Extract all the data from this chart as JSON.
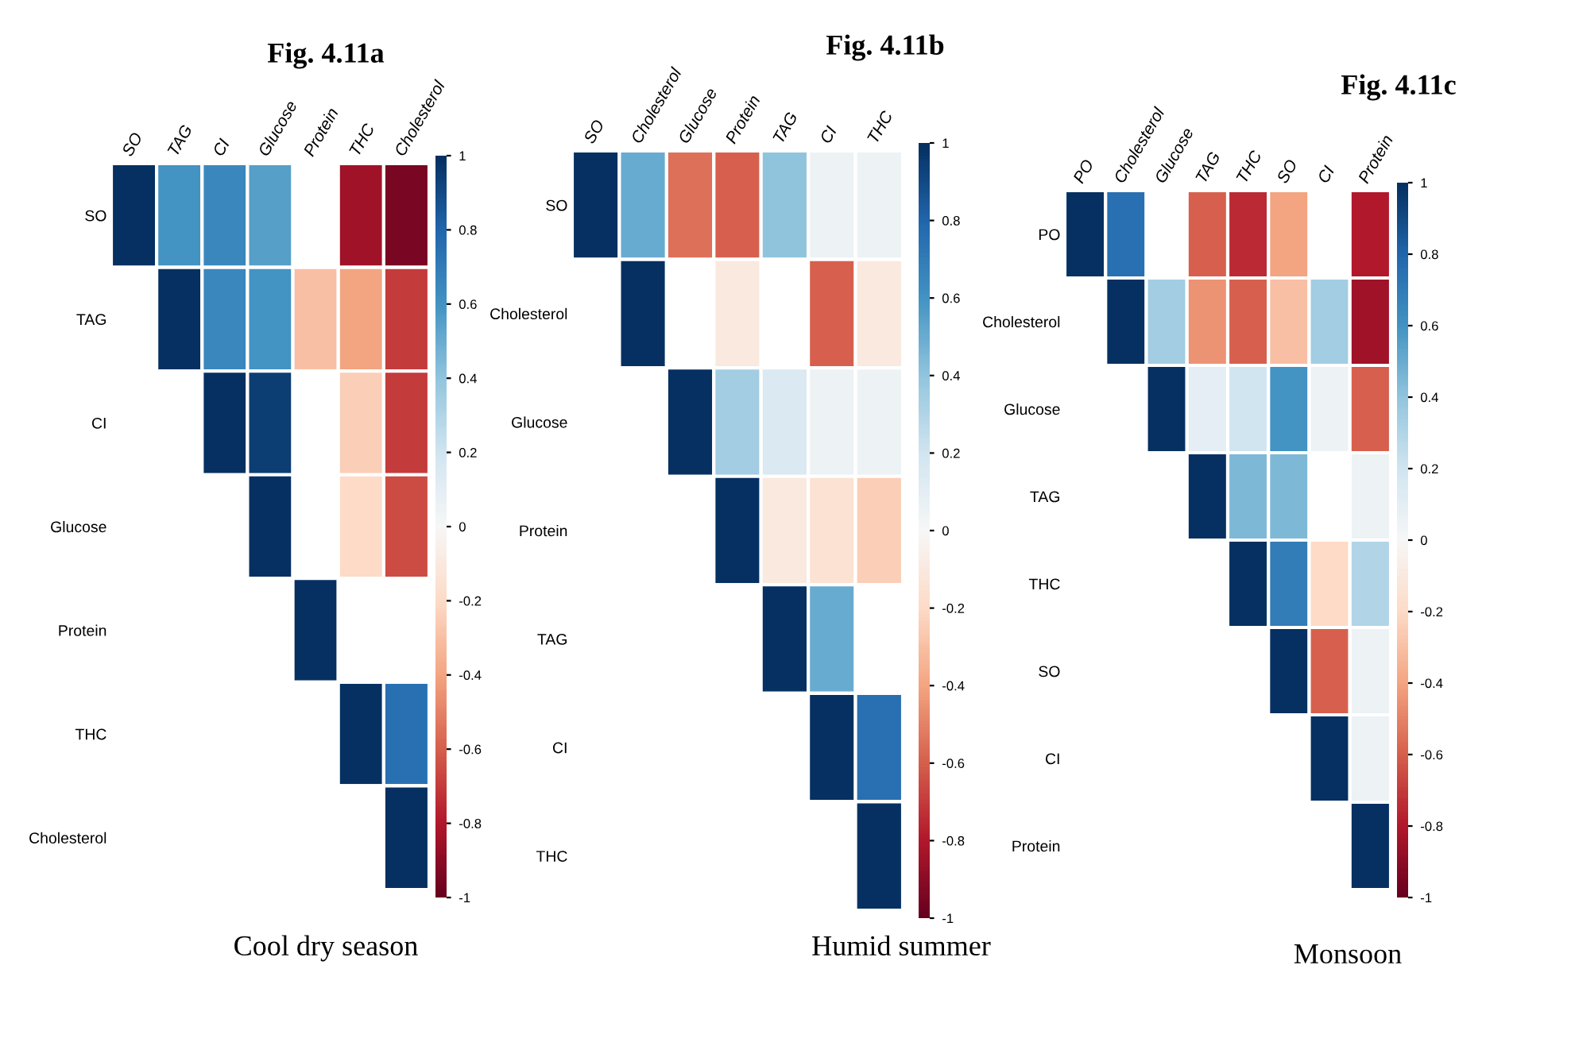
{
  "chart_data": [
    {
      "type": "heatmap",
      "title": "Fig. 4.11a",
      "annotations": [
        "Cool dry season"
      ],
      "categories": [
        "SO",
        "TAG",
        "CI",
        "Glucose",
        "Protein",
        "THC",
        "Cholesterol"
      ],
      "y_categories": [
        "SO",
        "TAG",
        "CI",
        "Glucose",
        "Protein",
        "THC",
        "Cholesterol"
      ],
      "cells": [
        [
          1,
          0.6,
          0.65,
          0.55,
          null,
          -0.85,
          -0.95
        ],
        [
          null,
          1,
          0.65,
          0.6,
          -0.3,
          -0.4,
          -0.7
        ],
        [
          null,
          null,
          1,
          0.95,
          null,
          -0.25,
          -0.7
        ],
        [
          null,
          null,
          null,
          1,
          null,
          -0.2,
          -0.65
        ],
        [
          null,
          null,
          null,
          null,
          1,
          null,
          null
        ],
        [
          null,
          null,
          null,
          null,
          null,
          1,
          0.75
        ],
        [
          null,
          null,
          null,
          null,
          null,
          null,
          1
        ]
      ],
      "clim": [
        -1,
        1
      ],
      "cticks": [
        1,
        0.8,
        0.6,
        0.4,
        0.2,
        0,
        -0.2,
        -0.4,
        -0.6,
        -0.8,
        -1
      ]
    },
    {
      "type": "heatmap",
      "title": "Fig. 4.11b",
      "annotations": [
        "Humid summer"
      ],
      "categories": [
        "SO",
        "Cholesterol",
        "Glucose",
        "Protein",
        "TAG",
        "CI",
        "THC"
      ],
      "y_categories": [
        "SO",
        "Cholesterol",
        "Glucose",
        "Protein",
        "TAG",
        "CI",
        "THC"
      ],
      "cells": [
        [
          1,
          0.5,
          -0.55,
          -0.6,
          0.4,
          0.05,
          0.05
        ],
        [
          null,
          1,
          null,
          -0.1,
          null,
          -0.6,
          -0.1
        ],
        [
          null,
          null,
          1,
          0.35,
          0.15,
          0.05,
          0.05
        ],
        [
          null,
          null,
          null,
          1,
          -0.1,
          -0.15,
          -0.25
        ],
        [
          null,
          null,
          null,
          null,
          1,
          0.5,
          null
        ],
        [
          null,
          null,
          null,
          null,
          null,
          1,
          0.75
        ],
        [
          null,
          null,
          null,
          null,
          null,
          null,
          1
        ]
      ],
      "clim": [
        -1,
        1
      ],
      "cticks": [
        1,
        0.8,
        0.6,
        0.4,
        0.2,
        0,
        -0.2,
        -0.4,
        -0.6,
        -0.8,
        -1
      ]
    },
    {
      "type": "heatmap",
      "title": "Fig. 4.11c",
      "annotations": [
        "Monsoon"
      ],
      "categories": [
        "PO",
        "Cholesterol",
        "Glucose",
        "TAG",
        "THC",
        "SO",
        "CI",
        "Protein"
      ],
      "y_categories": [
        "PO",
        "Cholesterol",
        "Glucose",
        "TAG",
        "THC",
        "SO",
        "CI",
        "Protein"
      ],
      "cells": [
        [
          1,
          0.75,
          null,
          -0.6,
          -0.75,
          -0.4,
          null,
          -0.8
        ],
        [
          null,
          1,
          0.35,
          -0.45,
          -0.6,
          -0.3,
          0.35,
          -0.85
        ],
        [
          null,
          null,
          1,
          0.1,
          0.2,
          0.6,
          0.05,
          -0.6
        ],
        [
          null,
          null,
          null,
          1,
          0.45,
          0.45,
          null,
          0.05
        ],
        [
          null,
          null,
          null,
          null,
          1,
          0.7,
          -0.2,
          0.3
        ],
        [
          null,
          null,
          null,
          null,
          null,
          1,
          -0.6,
          0.05
        ],
        [
          null,
          null,
          null,
          null,
          null,
          null,
          1,
          0.05
        ],
        [
          null,
          null,
          null,
          null,
          null,
          null,
          null,
          1
        ]
      ],
      "clim": [
        -1,
        1
      ],
      "cticks": [
        1,
        0.8,
        0.6,
        0.4,
        0.2,
        0,
        -0.2,
        -0.4,
        -0.6,
        -0.8,
        -1
      ]
    }
  ]
}
